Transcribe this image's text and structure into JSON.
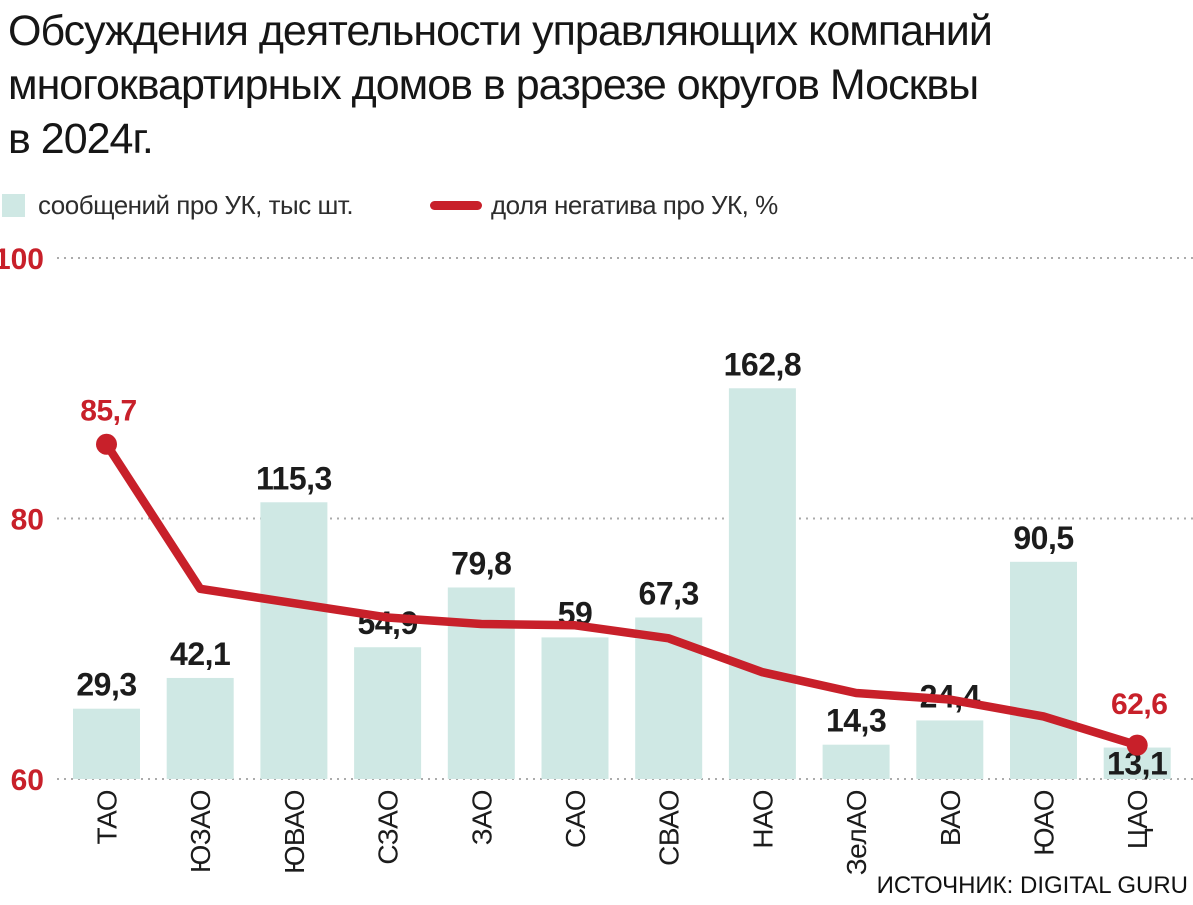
{
  "title_lines": [
    "Обсуждения деятельности управляющих компаний",
    "многоквартирных домов в разрезе округов Москвы",
    "в 2024г."
  ],
  "legend": [
    {
      "label": "сообщений про УК, тыс шт.",
      "color": "#cfe8e4"
    },
    {
      "label": "доля негатива про УК, %",
      "color": "#c8202a"
    }
  ],
  "source": "ИСТОЧНИК: DIGITAL GURU",
  "chart_data": {
    "type": "bar+line",
    "categories": [
      "ТАО",
      "ЮЗАО",
      "ЮВАО",
      "СЗАО",
      "ЗАО",
      "САО",
      "СВАО",
      "НАО",
      "ЗелАО",
      "ВАО",
      "ЮАО",
      "ЦАО"
    ],
    "series": [
      {
        "name": "сообщений про УК, тыс шт.",
        "type": "bar",
        "values": [
          29.3,
          42.1,
          115.3,
          54.9,
          79.8,
          59,
          67.3,
          162.8,
          14.3,
          24.4,
          90.5,
          13.1
        ],
        "value_labels": [
          "29,3",
          "42,1",
          "115,3",
          "54,9",
          "79,8",
          "59",
          "67,3",
          "162,8",
          "14,3",
          "24,4",
          "90,5",
          "13,1"
        ]
      },
      {
        "name": "доля негатива про УК, %",
        "type": "line",
        "values": [
          85.7,
          74.6,
          73.5,
          72.4,
          71.9,
          71.8,
          70.8,
          68.2,
          66.6,
          66.1,
          64.8,
          62.6
        ],
        "point_labels": [
          {
            "index": 0,
            "text": "85,7"
          },
          {
            "index": 11,
            "text": "62,6"
          }
        ]
      }
    ],
    "line_axis": {
      "ticks": [
        100,
        80,
        60
      ],
      "min": 60,
      "max": 100,
      "grid": "dotted"
    },
    "legend_position": "top",
    "colors": {
      "bar": "#cfe8e4",
      "line": "#c8202a",
      "grid": "#ababab",
      "value_label": "#1c1c1c",
      "tick_label": "#c8202a",
      "category_label": "#1c1c1c",
      "source": "#111111"
    }
  }
}
